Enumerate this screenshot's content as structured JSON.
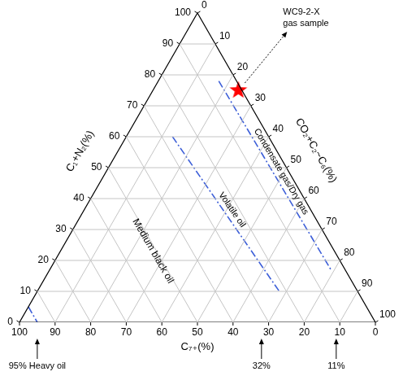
{
  "chart_data": {
    "type": "ternary",
    "axes": [
      {
        "label": "C₇₊(%)"
      },
      {
        "label": "C₁+N₂(%)"
      },
      {
        "label": "CO₂+C₂~C₆(%)"
      }
    ],
    "lim": [
      0,
      100
    ],
    "ticks": [
      0,
      10,
      20,
      30,
      40,
      50,
      60,
      70,
      80,
      90,
      100
    ],
    "grid": true,
    "series": [
      {
        "name": "WC9-2-X gas sample",
        "color": "#ff0000",
        "marker": "star",
        "values": [
          [
            1,
            75,
            24
          ]
        ]
      }
    ],
    "boundaries": [
      {
        "name": "Condensate gas/Dry gas",
        "color": "#3d5fd8",
        "line_style": "dashdot",
        "values": [
          [
            5,
            78,
            17
          ],
          [
            4,
            17,
            79
          ]
        ]
      },
      {
        "name": "Volatile oil",
        "color": "#3d5fd8",
        "line_style": "dashdot",
        "values": [
          [
            27,
            60,
            13
          ],
          [
            22,
            10,
            68
          ]
        ]
      },
      {
        "color": "#3d5fd8",
        "line_style": "dashdot",
        "values": [
          [
            95,
            5,
            0
          ],
          [
            95,
            0,
            5
          ]
        ]
      }
    ],
    "annotations": [
      {
        "text": "Medium black oil",
        "at": [
          51,
          23,
          26
        ]
      },
      {
        "text": "32%",
        "at": [
          32,
          0,
          68
        ]
      },
      {
        "text": "11%",
        "at": [
          11,
          0,
          89
        ]
      },
      {
        "text": "95% Heavy oil",
        "at": [
          95,
          0,
          5
        ]
      }
    ]
  }
}
